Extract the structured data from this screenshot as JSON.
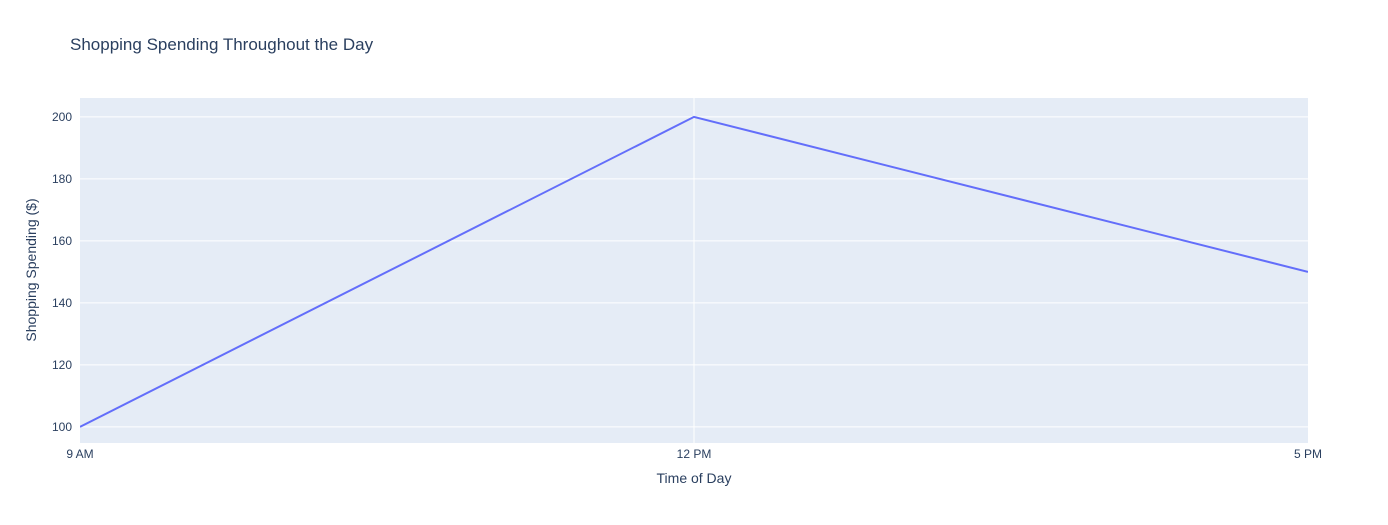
{
  "chart_data": {
    "type": "line",
    "title": "Shopping Spending Throughout the Day",
    "xlabel": "Time of Day",
    "ylabel": "Shopping Spending ($)",
    "categories": [
      "9 AM",
      "12 PM",
      "5 PM"
    ],
    "values": [
      100,
      200,
      150
    ],
    "yticks": [
      100,
      120,
      140,
      160,
      180,
      200
    ],
    "ylim": [
      94.8,
      206.1
    ],
    "grid": true,
    "legend": "none",
    "colors": {
      "line": "#636efa",
      "plot_bg": "#e5ecf6",
      "grid": "#ffffff",
      "text": "#2a3f5f",
      "paper_bg": "#ffffff"
    }
  }
}
